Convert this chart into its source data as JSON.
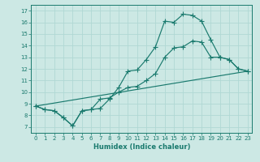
{
  "xlabel": "Humidex (Indice chaleur)",
  "bg_color": "#cce8e4",
  "grid_color": "#b0d8d4",
  "line_color": "#1a7a6e",
  "xlim": [
    -0.5,
    23.5
  ],
  "ylim": [
    6.5,
    17.5
  ],
  "xticks": [
    0,
    1,
    2,
    3,
    4,
    5,
    6,
    7,
    8,
    9,
    10,
    11,
    12,
    13,
    14,
    15,
    16,
    17,
    18,
    19,
    20,
    21,
    22,
    23
  ],
  "yticks": [
    7,
    8,
    9,
    10,
    11,
    12,
    13,
    14,
    15,
    16,
    17
  ],
  "line1_x": [
    0,
    1,
    2,
    3,
    4,
    5,
    6,
    7,
    8,
    9,
    10,
    11,
    12,
    13,
    14,
    15,
    16,
    17,
    18,
    19,
    20,
    21,
    22,
    23
  ],
  "line1_y": [
    8.8,
    8.5,
    8.4,
    7.8,
    7.1,
    8.4,
    8.5,
    8.6,
    9.4,
    10.4,
    11.8,
    11.9,
    12.8,
    13.9,
    16.1,
    16.0,
    16.7,
    16.6,
    16.1,
    14.5,
    13.0,
    12.8,
    12.0,
    11.8
  ],
  "line2_x": [
    0,
    1,
    2,
    3,
    4,
    5,
    6,
    7,
    8,
    9,
    10,
    11,
    12,
    13,
    14,
    15,
    16,
    17,
    18,
    19,
    20,
    21,
    22,
    23
  ],
  "line2_y": [
    8.8,
    8.5,
    8.4,
    7.8,
    7.1,
    8.4,
    8.5,
    9.4,
    9.5,
    10.0,
    10.4,
    10.5,
    11.0,
    11.6,
    13.0,
    13.8,
    13.9,
    14.4,
    14.3,
    13.0,
    13.0,
    12.8,
    12.0,
    11.8
  ],
  "line3_x": [
    0,
    23
  ],
  "line3_y": [
    8.8,
    11.8
  ]
}
